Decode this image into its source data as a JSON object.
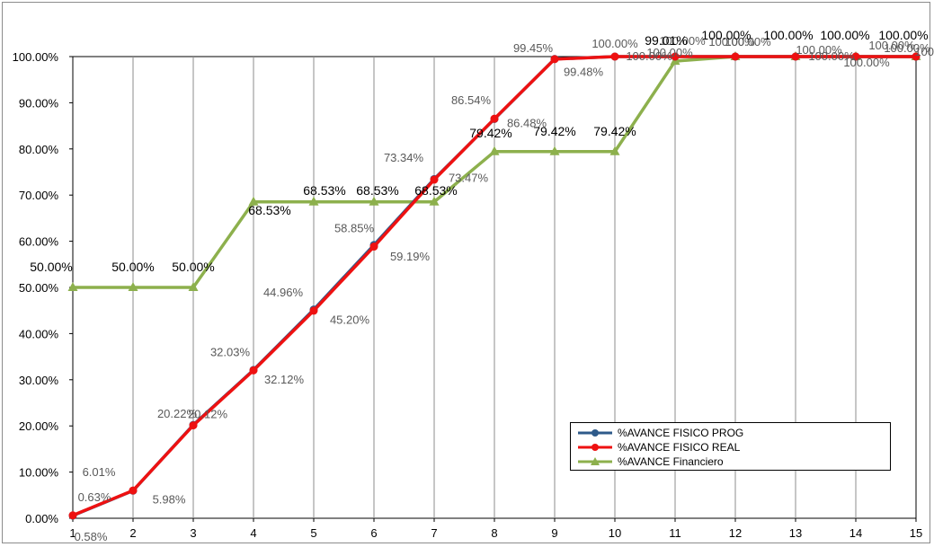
{
  "chart_data": {
    "type": "line",
    "x": [
      1,
      2,
      3,
      4,
      5,
      6,
      7,
      8,
      9,
      10,
      11,
      12,
      13,
      14,
      15
    ],
    "y_ticks": [
      "0.00%",
      "10.00%",
      "20.00%",
      "30.00%",
      "40.00%",
      "50.00%",
      "60.00%",
      "70.00%",
      "80.00%",
      "90.00%",
      "100.00%"
    ],
    "x_ticks": [
      "1",
      "2",
      "3",
      "4",
      "5",
      "6",
      "7",
      "8",
      "9",
      "10",
      "11",
      "12",
      "13",
      "14",
      "15"
    ],
    "ylim": [
      0,
      100
    ],
    "grid": "vertical",
    "legend_position": "bottom-right",
    "series": [
      {
        "name": "%AVANCE FISICO PROG",
        "color": "#2e5a8a",
        "marker": "circle",
        "values": [
          0.58,
          5.98,
          20.22,
          32.12,
          45.2,
          59.19,
          73.47,
          86.48,
          99.48,
          100.0,
          100.0,
          100.0,
          100.0,
          100.0,
          100.0
        ],
        "labels": [
          "0.58%",
          "5.98%",
          "20.22%",
          "32.12%",
          "45.20%",
          "59.19%",
          "73.47%",
          "86.48%",
          "99.48%",
          "100.00%",
          "100.00%",
          "100.00%",
          "100.00%",
          "100.00%",
          "100.00%"
        ]
      },
      {
        "name": "%AVANCE FISICO REAL",
        "color": "#ee1111",
        "marker": "circle",
        "values": [
          0.63,
          6.01,
          20.12,
          32.03,
          44.96,
          58.85,
          73.34,
          86.54,
          99.45,
          100.0,
          100.0,
          100.0,
          100.0,
          100.0,
          100.0
        ],
        "labels": [
          "0.63%",
          "6.01%",
          "20.12%",
          "32.03%",
          "44.96%",
          "58.85%",
          "73.34%",
          "86.54%",
          "99.45%",
          "100.00%",
          "100.00%",
          "100.00%",
          "100.00%",
          "100.00%",
          "100.00%"
        ]
      },
      {
        "name": "%AVANCE Financiero",
        "color": "#8db04d",
        "marker": "triangle",
        "values": [
          50.0,
          50.0,
          50.0,
          68.53,
          68.53,
          68.53,
          68.53,
          79.42,
          79.42,
          79.42,
          99.01,
          100.0,
          100.0,
          100.0,
          100.0
        ],
        "labels": [
          "50.00%",
          "50.00%",
          "50.00%",
          "68.53%",
          "68.53%",
          "68.53%",
          "68.53%",
          "79.42%",
          "79.42%",
          "79.42%",
          "99.01%",
          "100.00%",
          "100.00%",
          "100.00%",
          "100.00%"
        ]
      }
    ]
  }
}
